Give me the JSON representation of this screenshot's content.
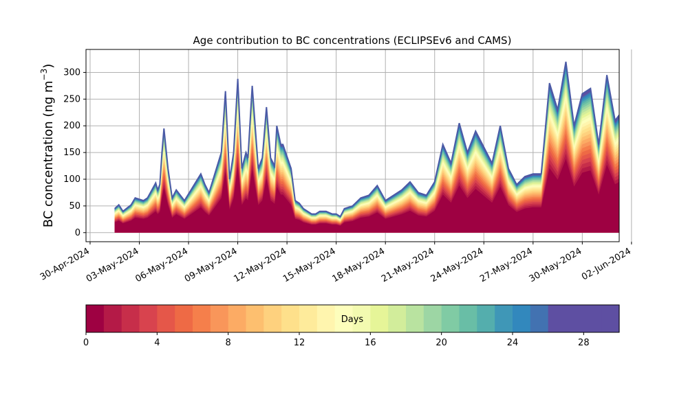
{
  "chart_data": {
    "type": "area",
    "stacked": true,
    "title": "Age contribution to BC concentrations (ECLIPSEv6 and CAMS)",
    "ylabel": "BC concentration (ng m",
    "ylabel_sup": "−3",
    "ylabel_close": ")",
    "ylim": [
      -17,
      343
    ],
    "yticks": [
      0,
      50,
      100,
      150,
      200,
      250,
      300
    ],
    "ytick_labels": [
      "0",
      "50",
      "100",
      "150",
      "200",
      "250",
      "300"
    ],
    "xlim_days": [
      -0.25,
      32.25
    ],
    "xtick_labels": [
      "30-Apr-2024",
      "03-May-2024",
      "06-May-2024",
      "09-May-2024",
      "12-May-2024",
      "15-May-2024",
      "18-May-2024",
      "21-May-2024",
      "24-May-2024",
      "27-May-2024",
      "30-May-2024",
      "02-Jun-2024"
    ],
    "grid": true,
    "series_note": "30 stacked layers, one per day of age 0–29; total concentration shown below",
    "dates": [
      "01-May-2024 12:00",
      "01-May-2024 18:00",
      "02-May-2024 00:00",
      "02-May-2024 12:00",
      "02-May-2024 18:00",
      "03-May-2024 06:00",
      "03-May-2024 12:00",
      "04-May-2024 00:00",
      "04-May-2024 03:00",
      "04-May-2024 06:00",
      "04-May-2024 09:00",
      "04-May-2024 12:00",
      "04-May-2024 18:00",
      "05-May-2024 00:00",
      "05-May-2024 06:00",
      "05-May-2024 12:00",
      "05-May-2024 18:00",
      "06-May-2024 06:00",
      "06-May-2024 18:00",
      "07-May-2024 00:00",
      "07-May-2024 06:00",
      "07-May-2024 12:00",
      "08-May-2024 00:00",
      "08-May-2024 06:00",
      "08-May-2024 12:00",
      "08-May-2024 18:00",
      "09-May-2024 00:00",
      "09-May-2024 06:00",
      "09-May-2024 12:00",
      "09-May-2024 15:00",
      "09-May-2024 21:00",
      "10-May-2024 06:00",
      "10-May-2024 12:00",
      "10-May-2024 18:00",
      "11-May-2024 00:00",
      "11-May-2024 06:00",
      "11-May-2024 09:00",
      "11-May-2024 15:00",
      "11-May-2024 18:00",
      "12-May-2024 06:00",
      "12-May-2024 12:00",
      "12-May-2024 18:00",
      "13-May-2024 00:00",
      "13-May-2024 12:00",
      "13-May-2024 18:00",
      "14-May-2024 00:00",
      "14-May-2024 09:00",
      "14-May-2024 18:00",
      "15-May-2024 00:00",
      "15-May-2024 06:00",
      "15-May-2024 12:00",
      "16-May-2024 00:00",
      "16-May-2024 12:00",
      "17-May-2024 00:00",
      "17-May-2024 12:00",
      "18-May-2024 00:00",
      "18-May-2024 12:00",
      "19-May-2024 00:00",
      "19-May-2024 12:00",
      "20-May-2024 00:00",
      "20-May-2024 12:00",
      "21-May-2024 00:00",
      "21-May-2024 12:00",
      "22-May-2024 00:00",
      "22-May-2024 12:00",
      "23-May-2024 00:00",
      "23-May-2024 12:00",
      "24-May-2024 00:00",
      "24-May-2024 12:00",
      "25-May-2024 00:00",
      "25-May-2024 12:00",
      "26-May-2024 00:00",
      "26-May-2024 12:00",
      "27-May-2024 00:00",
      "27-May-2024 12:00",
      "28-May-2024 00:00",
      "28-May-2024 12:00",
      "29-May-2024 00:00",
      "29-May-2024 12:00",
      "30-May-2024 00:00",
      "30-May-2024 12:00",
      "31-May-2024 00:00",
      "31-May-2024 12:00",
      "01-Jun-2024 00:00",
      "01-Jun-2024 12:00"
    ],
    "x_days": [
      1.5,
      1.75,
      2.0,
      2.5,
      2.75,
      3.25,
      3.5,
      4.0,
      4.12,
      4.25,
      4.38,
      4.5,
      4.75,
      5.0,
      5.25,
      5.5,
      5.75,
      6.25,
      6.75,
      7.0,
      7.25,
      7.5,
      8.0,
      8.25,
      8.5,
      8.75,
      9.0,
      9.25,
      9.5,
      9.62,
      9.88,
      10.25,
      10.5,
      10.75,
      11.0,
      11.25,
      11.38,
      11.62,
      11.75,
      12.25,
      12.5,
      12.75,
      13.0,
      13.5,
      13.75,
      14.0,
      14.38,
      14.75,
      15.0,
      15.25,
      15.5,
      16.0,
      16.5,
      17.0,
      17.5,
      18.0,
      18.5,
      19.0,
      19.5,
      20.0,
      20.5,
      21.0,
      21.5,
      22.0,
      22.5,
      23.0,
      23.5,
      24.0,
      24.5,
      25.0,
      25.5,
      26.0,
      26.5,
      27.0,
      27.5,
      28.0,
      28.5,
      29.0,
      29.5,
      30.0,
      30.5,
      31.0,
      31.5,
      32.0,
      32.5
    ],
    "total": [
      45,
      52,
      40,
      52,
      65,
      60,
      65,
      93,
      80,
      90,
      150,
      195,
      120,
      65,
      80,
      70,
      60,
      85,
      110,
      90,
      75,
      100,
      150,
      265,
      100,
      150,
      288,
      120,
      150,
      140,
      275,
      120,
      140,
      235,
      140,
      125,
      200,
      165,
      165,
      120,
      60,
      55,
      45,
      35,
      35,
      40,
      40,
      35,
      35,
      30,
      45,
      50,
      65,
      70,
      88,
      60,
      70,
      80,
      95,
      75,
      70,
      95,
      165,
      130,
      205,
      150,
      190,
      160,
      130,
      200,
      120,
      90,
      105,
      110,
      110,
      280,
      230,
      320,
      200,
      260,
      270,
      165,
      295,
      210,
      230
    ],
    "layers": 30,
    "colorbar": {
      "label": "Days",
      "ticks": [
        "0",
        "4",
        "8",
        "12",
        "16",
        "20",
        "24",
        "28"
      ],
      "colors": [
        "#9e0142",
        "#b41a47",
        "#c72e4a",
        "#d8434e",
        "#e55749",
        "#ee6a45",
        "#f57f4b",
        "#f9965a",
        "#fcab64",
        "#fdbf6f",
        "#fed17e",
        "#fee08b",
        "#feeb9b",
        "#fff5ae",
        "#fdfebc",
        "#f3fab0",
        "#e6f598",
        "#d2ed9b",
        "#b9e3a0",
        "#9dd6a4",
        "#80cba4",
        "#69bea6",
        "#54aead",
        "#3f97b7",
        "#3288bd",
        "#4272b1",
        "#5e4fa2",
        "#5e4fa2",
        "#5e4fa2",
        "#5e4fa2"
      ]
    }
  }
}
